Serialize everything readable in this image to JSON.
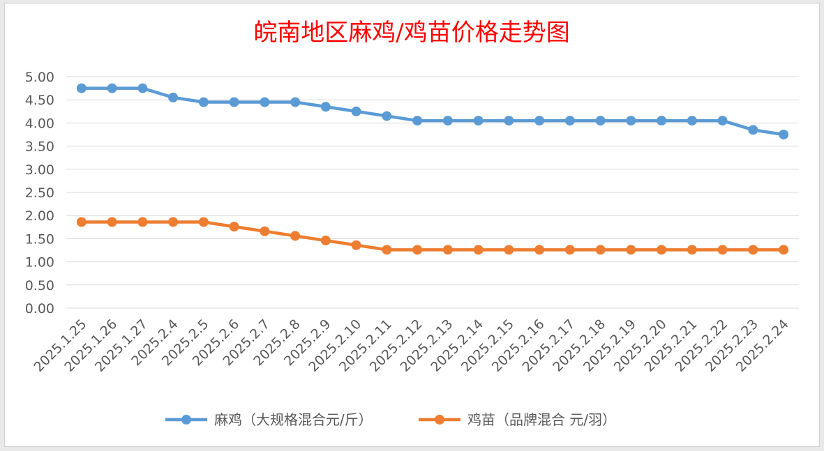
{
  "chart_data": {
    "type": "line",
    "title": "皖南地区麻鸡/鸡苗价格走势图",
    "xlabel": "",
    "ylabel": "",
    "ylim": [
      0,
      5
    ],
    "ytick_labels": [
      "0.00",
      "0.50",
      "1.00",
      "1.50",
      "2.00",
      "2.50",
      "3.00",
      "3.50",
      "4.00",
      "4.50",
      "5.00"
    ],
    "grid": true,
    "legend_position": "bottom",
    "categories": [
      "2025.1.25",
      "2025.1.26",
      "2025.1.27",
      "2025.2.4",
      "2025.2.5",
      "2025.2.6",
      "2025.2.7",
      "2025.2.8",
      "2025.2.9",
      "2025.2.10",
      "2025.2.11",
      "2025.2.12",
      "2025.2.13",
      "2025.2.14",
      "2025.2.15",
      "2025.2.16",
      "2025.2.17",
      "2025.2.18",
      "2025.2.19",
      "2025.2.20",
      "2025.2.21",
      "2025.2.22",
      "2025.2.23",
      "2025.2.24"
    ],
    "series": [
      {
        "name": "麻鸡（大规格混合元/斤）",
        "color": "#5b9bd5",
        "values": [
          4.75,
          4.75,
          4.75,
          4.55,
          4.45,
          4.45,
          4.45,
          4.45,
          4.35,
          4.25,
          4.15,
          4.05,
          4.05,
          4.05,
          4.05,
          4.05,
          4.05,
          4.05,
          4.05,
          4.05,
          4.05,
          4.05,
          3.85,
          3.75
        ]
      },
      {
        "name": "鸡苗（品牌混合 元/羽）",
        "color": "#ed7d31",
        "values": [
          1.86,
          1.86,
          1.86,
          1.86,
          1.86,
          1.76,
          1.66,
          1.56,
          1.46,
          1.36,
          1.26,
          1.26,
          1.26,
          1.26,
          1.26,
          1.26,
          1.26,
          1.26,
          1.26,
          1.26,
          1.26,
          1.26,
          1.26,
          1.26
        ]
      }
    ]
  }
}
